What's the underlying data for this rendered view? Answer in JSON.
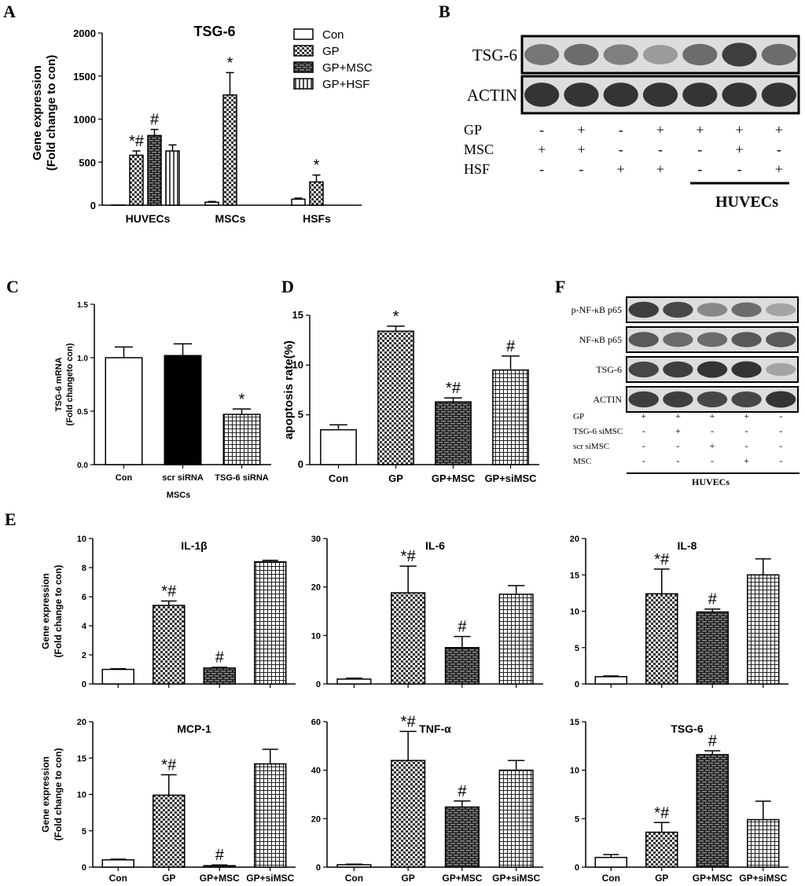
{
  "panel_labels": {
    "A": "A",
    "B": "B",
    "C": "C",
    "D": "D",
    "E": "E",
    "F": "F"
  },
  "chart_data": [
    {
      "panel": "A",
      "type": "bar",
      "title": "TSG-6",
      "ylabel_line1": "Gene expression",
      "ylabel_line2": "(Fold change to con)",
      "ylim": [
        0,
        2000
      ],
      "yticks": [
        "0",
        "500",
        "1000",
        "1500",
        "2000"
      ],
      "categories": [
        "HUVECs",
        "MSCs",
        "HSFs"
      ],
      "series": [
        {
          "name": "Con",
          "pattern": "open",
          "values": [
            2,
            35,
            70
          ],
          "errors": [
            0,
            8,
            12
          ],
          "marks": [
            "",
            "",
            ""
          ]
        },
        {
          "name": "GP",
          "pattern": "check",
          "values": [
            580,
            1280,
            270
          ],
          "errors": [
            50,
            260,
            80
          ],
          "marks": [
            "*#",
            "*",
            "*"
          ]
        },
        {
          "name": "GP+MSC",
          "pattern": "brick",
          "values": [
            810,
            null,
            null
          ],
          "errors": [
            70,
            null,
            null
          ],
          "marks": [
            "#",
            "",
            ""
          ]
        },
        {
          "name": "GP+HSF",
          "pattern": "vert",
          "values": [
            630,
            null,
            null
          ],
          "errors": [
            70,
            null,
            null
          ],
          "marks": [
            "",
            "",
            ""
          ]
        }
      ]
    },
    {
      "panel": "C",
      "type": "bar",
      "ylabel_line1": "TSG-6 mRNA",
      "ylabel_line2": "(Fold changeto con)",
      "ylim": [
        0,
        1.5
      ],
      "yticks": [
        "0.0",
        "0.5",
        "1.0",
        "1.5"
      ],
      "categories": [
        "Con",
        "scr siRNA",
        "TSG-6 siRNA"
      ],
      "xgroup_label": "MSCs",
      "patterns": [
        "open",
        "black",
        "grid"
      ],
      "values": [
        1.0,
        1.02,
        0.47
      ],
      "errors": [
        0.1,
        0.11,
        0.05
      ],
      "marks": [
        "",
        "",
        "*"
      ]
    },
    {
      "panel": "D",
      "type": "bar",
      "ylabel_line1": "apoptosis rate(%)",
      "ylim": [
        0,
        15
      ],
      "yticks": [
        "0",
        "5",
        "10",
        "15"
      ],
      "categories": [
        "Con",
        "GP",
        "GP+MSC",
        "GP+siMSC"
      ],
      "patterns": [
        "open",
        "check",
        "brick",
        "grid"
      ],
      "values": [
        3.5,
        13.4,
        6.3,
        9.5
      ],
      "errors": [
        0.5,
        0.5,
        0.4,
        1.4
      ],
      "marks": [
        "",
        "*",
        "*#",
        "#"
      ]
    },
    {
      "panel": "E",
      "type": "bar",
      "title": "IL-1β",
      "ylim": [
        0,
        10
      ],
      "yticks": [
        "0",
        "2",
        "4",
        "6",
        "8",
        "10"
      ],
      "categories": [
        "Con",
        "GP",
        "GP+MSC",
        "GP+siMSC"
      ],
      "patterns": [
        "open",
        "check",
        "brick",
        "grid"
      ],
      "values": [
        1.0,
        5.4,
        1.1,
        8.4
      ],
      "errors": [
        0.05,
        0.3,
        0.05,
        0.1
      ],
      "marks": [
        "",
        "*#",
        "#",
        ""
      ],
      "ylabel_line1": "Gene expression",
      "ylabel_line2": "(Fold change to con)",
      "show_xlabels": false
    },
    {
      "panel": "E",
      "type": "bar",
      "title": "IL-6",
      "ylim": [
        0,
        30
      ],
      "yticks": [
        "0",
        "10",
        "20",
        "30"
      ],
      "categories": [
        "Con",
        "GP",
        "GP+MSC",
        "GP+siMSC"
      ],
      "patterns": [
        "open",
        "check",
        "brick",
        "grid"
      ],
      "values": [
        1.0,
        18.8,
        7.5,
        18.5
      ],
      "errors": [
        0.2,
        5.5,
        2.3,
        1.8
      ],
      "marks": [
        "",
        "*#",
        "#",
        ""
      ],
      "show_xlabels": false
    },
    {
      "panel": "E",
      "type": "bar",
      "title": "IL-8",
      "ylim": [
        0,
        20
      ],
      "yticks": [
        "0",
        "5",
        "10",
        "15",
        "20"
      ],
      "categories": [
        "Con",
        "GP",
        "GP+MSC",
        "GP+siMSC"
      ],
      "patterns": [
        "open",
        "check",
        "brick",
        "grid"
      ],
      "values": [
        1.0,
        12.4,
        9.9,
        15.0
      ],
      "errors": [
        0.1,
        3.4,
        0.4,
        2.2
      ],
      "marks": [
        "",
        "*#",
        "#",
        ""
      ],
      "show_xlabels": false
    },
    {
      "panel": "E",
      "type": "bar",
      "title": "MCP-1",
      "ylim": [
        0,
        20
      ],
      "yticks": [
        "0",
        "5",
        "10",
        "15",
        "20"
      ],
      "categories": [
        "Con",
        "GP",
        "GP+MSC",
        "GP+siMSC"
      ],
      "patterns": [
        "open",
        "check",
        "brick",
        "grid"
      ],
      "values": [
        1.0,
        9.9,
        0.2,
        14.2
      ],
      "errors": [
        0.1,
        2.8,
        0.1,
        2.0
      ],
      "marks": [
        "",
        "*#",
        "#",
        ""
      ],
      "ylabel_line1": "Gene expression",
      "ylabel_line2": "(Fold change to con)",
      "show_xlabels": true
    },
    {
      "panel": "E",
      "type": "bar",
      "title": "TNF-α",
      "ylim": [
        0,
        60
      ],
      "yticks": [
        "0",
        "20",
        "40",
        "60"
      ],
      "categories": [
        "Con",
        "GP",
        "GP+MSC",
        "GP+siMSC"
      ],
      "patterns": [
        "open",
        "check",
        "brick",
        "grid"
      ],
      "values": [
        1.0,
        44.0,
        24.8,
        40.0
      ],
      "errors": [
        0.2,
        12.0,
        2.5,
        4.0
      ],
      "marks": [
        "",
        "*#",
        "#",
        ""
      ],
      "show_xlabels": true
    },
    {
      "panel": "E",
      "type": "bar",
      "title": "TSG-6",
      "ylim": [
        0,
        15
      ],
      "yticks": [
        "0",
        "5",
        "10",
        "15"
      ],
      "categories": [
        "Con",
        "GP",
        "GP+MSC",
        "GP+siMSC"
      ],
      "patterns": [
        "open",
        "check",
        "brick",
        "grid"
      ],
      "values": [
        1.0,
        3.6,
        11.6,
        4.9
      ],
      "errors": [
        0.3,
        1.0,
        0.4,
        1.9
      ],
      "marks": [
        "",
        "*#",
        "#",
        ""
      ],
      "show_xlabels": true
    }
  ],
  "blot_B": {
    "bands": [
      "TSG-6",
      "ACTIN"
    ],
    "conditions": [
      {
        "label": "GP",
        "signs": [
          "-",
          "+",
          "-",
          "+",
          "+",
          "+",
          "+"
        ]
      },
      {
        "label": "MSC",
        "signs": [
          "+",
          "+",
          "-",
          "-",
          "-",
          "+",
          "-"
        ]
      },
      {
        "label": "HSF",
        "signs": [
          "-",
          "-",
          "+",
          "+",
          "-",
          "-",
          "+"
        ]
      }
    ],
    "group_label": "HUVECs",
    "band_intensity": [
      [
        0.55,
        0.6,
        0.5,
        0.35,
        0.6,
        0.85,
        0.6
      ],
      [
        0.9,
        0.9,
        0.9,
        0.9,
        0.9,
        0.9,
        0.9
      ]
    ]
  },
  "blot_F": {
    "bands": [
      "p-NF-κB p65",
      "NF-κB p65",
      "TSG-6",
      "ACTIN"
    ],
    "conditions": [
      {
        "label": "GP",
        "signs": [
          "+",
          "+",
          "+",
          "+",
          "-"
        ]
      },
      {
        "label": "TSG-6 siMSC",
        "signs": [
          "-",
          "+",
          "-",
          "-",
          "-"
        ]
      },
      {
        "label": "scr siMSC",
        "signs": [
          "-",
          "-",
          "+",
          "-",
          "-"
        ]
      },
      {
        "label": "MSC",
        "signs": [
          "-",
          "-",
          "-",
          "+",
          "-"
        ]
      }
    ],
    "group_label": "HUVECs",
    "band_intensity": [
      [
        0.85,
        0.8,
        0.45,
        0.6,
        0.3
      ],
      [
        0.7,
        0.6,
        0.6,
        0.7,
        0.7
      ],
      [
        0.8,
        0.85,
        0.9,
        0.9,
        0.3
      ],
      [
        0.85,
        0.85,
        0.8,
        0.8,
        0.9
      ]
    ]
  }
}
